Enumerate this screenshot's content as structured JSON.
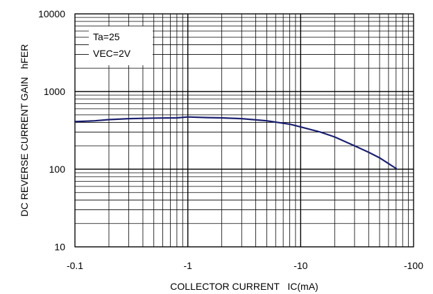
{
  "chart_data": {
    "type": "line",
    "xlabel": "COLLECTOR CURRENT   IC(mA)",
    "ylabel": "DC REVERSE CURRENT GAIN   hFER",
    "x_scale": "log",
    "y_scale": "log",
    "x_ticks": [
      "-0.1",
      "-1",
      "-10",
      "-100"
    ],
    "y_ticks": [
      "10",
      "100",
      "1000",
      "10000"
    ],
    "xlim": [
      -0.1,
      -100
    ],
    "ylim": [
      10,
      10000
    ],
    "grid": true,
    "annotations": [
      "Ta=25",
      "VEC=2V"
    ],
    "series": [
      {
        "color": "#1a1f6e",
        "x": [
          -0.1,
          -0.15,
          -0.2,
          -0.3,
          -0.5,
          -0.8,
          -1,
          -1.5,
          -2,
          -3,
          -5,
          -8,
          -10,
          -15,
          -20,
          -30,
          -40,
          -50,
          -60,
          -70
        ],
        "y": [
          410,
          420,
          435,
          448,
          455,
          458,
          470,
          462,
          458,
          448,
          420,
          380,
          350,
          300,
          260,
          200,
          165,
          140,
          118,
          102
        ]
      }
    ]
  }
}
